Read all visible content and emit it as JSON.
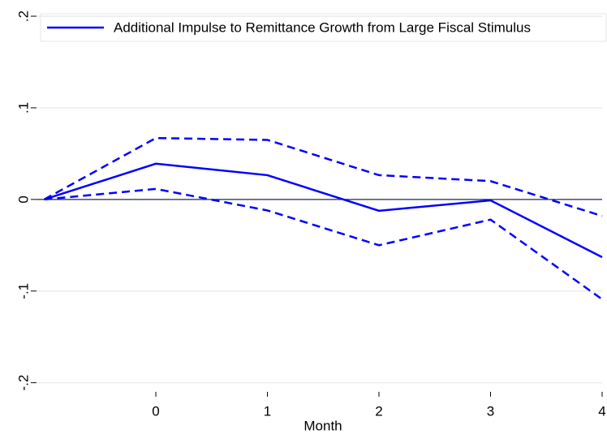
{
  "chart_data": {
    "type": "line",
    "x_label": "Month",
    "x": [
      -1,
      0,
      1,
      2,
      3,
      4
    ],
    "series": [
      {
        "name": "Additional Impulse to Remittance Growth from Large Fiscal Stimulus",
        "color": "#0000ff",
        "dash": false,
        "values": [
          0,
          0.039,
          0.0265,
          -0.0124,
          -0.001,
          -0.063
        ]
      },
      {
        "color": "#0000ff",
        "dash": true,
        "values": [
          0,
          0.067,
          0.065,
          0.0265,
          0.02,
          -0.018
        ]
      },
      {
        "color": "#0000ff",
        "dash": true,
        "values": [
          0,
          0.0115,
          -0.012,
          -0.05,
          -0.022,
          -0.109
        ]
      }
    ],
    "xlim": [
      -1.07,
      4
    ],
    "xticks": [
      0,
      1,
      2,
      3,
      4
    ],
    "ylim": [
      -0.21,
      0.2
    ],
    "yticks": [
      {
        "value": -0.2,
        "label": "-.2"
      },
      {
        "value": -0.1,
        "label": "-.1"
      },
      0,
      {
        "value": 0.1,
        "label": ".1"
      },
      {
        "value": 0.2,
        "label": ".2"
      }
    ],
    "grid": true,
    "reference_line": 0,
    "legend": "top"
  }
}
